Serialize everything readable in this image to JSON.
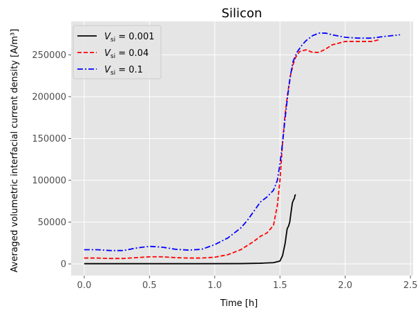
{
  "chart_data": {
    "type": "line",
    "title": "Silicon",
    "xlabel": "Time [h]",
    "ylabel": "Averaged volumetric interfacial current density [A/m³]",
    "xlim": [
      -0.1,
      2.52
    ],
    "ylim": [
      -14000,
      290000
    ],
    "xticks": [
      0.0,
      0.5,
      1.0,
      1.5,
      2.0,
      2.5
    ],
    "xtick_labels": [
      "0.0",
      "0.5",
      "1.0",
      "1.5",
      "2.0",
      "2.5"
    ],
    "yticks": [
      0,
      50000,
      100000,
      150000,
      200000,
      250000
    ],
    "ytick_labels": [
      "0",
      "50000",
      "100000",
      "150000",
      "200000",
      "250000"
    ],
    "grid": true,
    "legend_position": "top-left",
    "series": [
      {
        "name": "V_si = 0.001",
        "legend_var": "V",
        "legend_sub": "si",
        "legend_value": "= 0.001",
        "color": "#000000",
        "dash": "solid",
        "x": [
          0.0,
          0.3,
          0.6,
          0.9,
          1.2,
          1.35,
          1.45,
          1.5,
          1.52,
          1.54,
          1.555,
          1.565,
          1.575,
          1.585,
          1.595,
          1.605,
          1.61,
          1.615,
          1.62
        ],
        "y": [
          300,
          300,
          300,
          300,
          400,
          800,
          1500,
          3500,
          10000,
          25000,
          42000,
          45000,
          50000,
          62000,
          73000,
          77000,
          78000,
          82000,
          83000
        ]
      },
      {
        "name": "V_si = 0.04",
        "legend_var": "V",
        "legend_sub": "si",
        "legend_value": "= 0.04",
        "color": "#ff0000",
        "dash": "dashed",
        "x": [
          0.0,
          0.1,
          0.2,
          0.3,
          0.4,
          0.5,
          0.6,
          0.7,
          0.8,
          0.9,
          1.0,
          1.1,
          1.2,
          1.3,
          1.35,
          1.4,
          1.45,
          1.48,
          1.5,
          1.52,
          1.54,
          1.56,
          1.58,
          1.6,
          1.62,
          1.65,
          1.7,
          1.75,
          1.8,
          1.85,
          1.9,
          2.0,
          2.1,
          2.2,
          2.26
        ],
        "y": [
          7000,
          7000,
          6500,
          6500,
          7500,
          8500,
          8500,
          7500,
          7000,
          7000,
          8000,
          11000,
          17000,
          27000,
          33000,
          37000,
          46000,
          70000,
          100000,
          145000,
          180000,
          205000,
          225000,
          238000,
          247000,
          254000,
          256000,
          253000,
          253000,
          257000,
          262000,
          266000,
          266000,
          266000,
          268000
        ]
      },
      {
        "name": "V_si = 0.1",
        "legend_var": "V",
        "legend_sub": "si",
        "legend_value": "= 0.1",
        "color": "#0000ff",
        "dash": "dashdot",
        "x": [
          0.0,
          0.1,
          0.2,
          0.3,
          0.4,
          0.5,
          0.6,
          0.7,
          0.8,
          0.9,
          1.0,
          1.1,
          1.2,
          1.25,
          1.3,
          1.35,
          1.4,
          1.45,
          1.48,
          1.5,
          1.52,
          1.54,
          1.56,
          1.58,
          1.6,
          1.63,
          1.67,
          1.7,
          1.75,
          1.8,
          1.85,
          1.9,
          2.0,
          2.1,
          2.2,
          2.3,
          2.42
        ],
        "y": [
          17000,
          17000,
          16000,
          16000,
          19000,
          21000,
          20000,
          17500,
          16500,
          17500,
          23000,
          31000,
          43000,
          52000,
          63000,
          74000,
          80000,
          88000,
          100000,
          120000,
          145000,
          175000,
          202000,
          225000,
          242000,
          253000,
          262000,
          267000,
          273000,
          276000,
          276000,
          274000,
          271000,
          270000,
          270000,
          272000,
          274000
        ]
      }
    ]
  }
}
